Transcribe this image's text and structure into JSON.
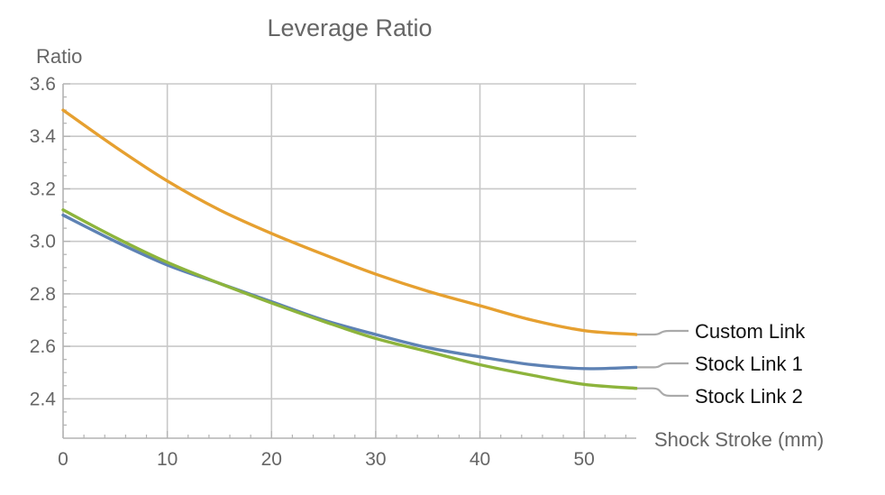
{
  "chart_data": {
    "type": "line",
    "title": "Leverage Ratio",
    "xlabel": "Shock Stroke (mm)",
    "ylabel": "Ratio",
    "xlim": [
      0,
      55
    ],
    "ylim": [
      2.25,
      3.6
    ],
    "x_ticks": [
      0,
      10,
      20,
      30,
      40,
      50
    ],
    "y_ticks": [
      2.4,
      2.6,
      2.8,
      3.0,
      3.2,
      3.4,
      3.6
    ],
    "x_tick_labels": [
      "0",
      "10",
      "20",
      "30",
      "40",
      "50"
    ],
    "y_tick_labels": [
      "2.4",
      "2.6",
      "2.8",
      "3.0",
      "3.2",
      "3.4",
      "3.6"
    ],
    "grid": true,
    "legend_placement": "right",
    "x": [
      0,
      5,
      10,
      15,
      20,
      25,
      30,
      35,
      40,
      45,
      50,
      55
    ],
    "series": [
      {
        "name": "Custom Link",
        "color": "#e6a030",
        "values": [
          3.5,
          3.36,
          3.23,
          3.12,
          3.03,
          2.95,
          2.875,
          2.81,
          2.755,
          2.7,
          2.66,
          2.645
        ]
      },
      {
        "name": "Stock Link 1",
        "color": "#5e82b4",
        "values": [
          3.1,
          3.0,
          2.91,
          2.84,
          2.77,
          2.7,
          2.645,
          2.595,
          2.56,
          2.53,
          2.515,
          2.52
        ]
      },
      {
        "name": "Stock Link 2",
        "color": "#8db43c",
        "values": [
          3.12,
          3.015,
          2.92,
          2.84,
          2.765,
          2.695,
          2.63,
          2.58,
          2.53,
          2.49,
          2.455,
          2.44
        ]
      }
    ]
  }
}
